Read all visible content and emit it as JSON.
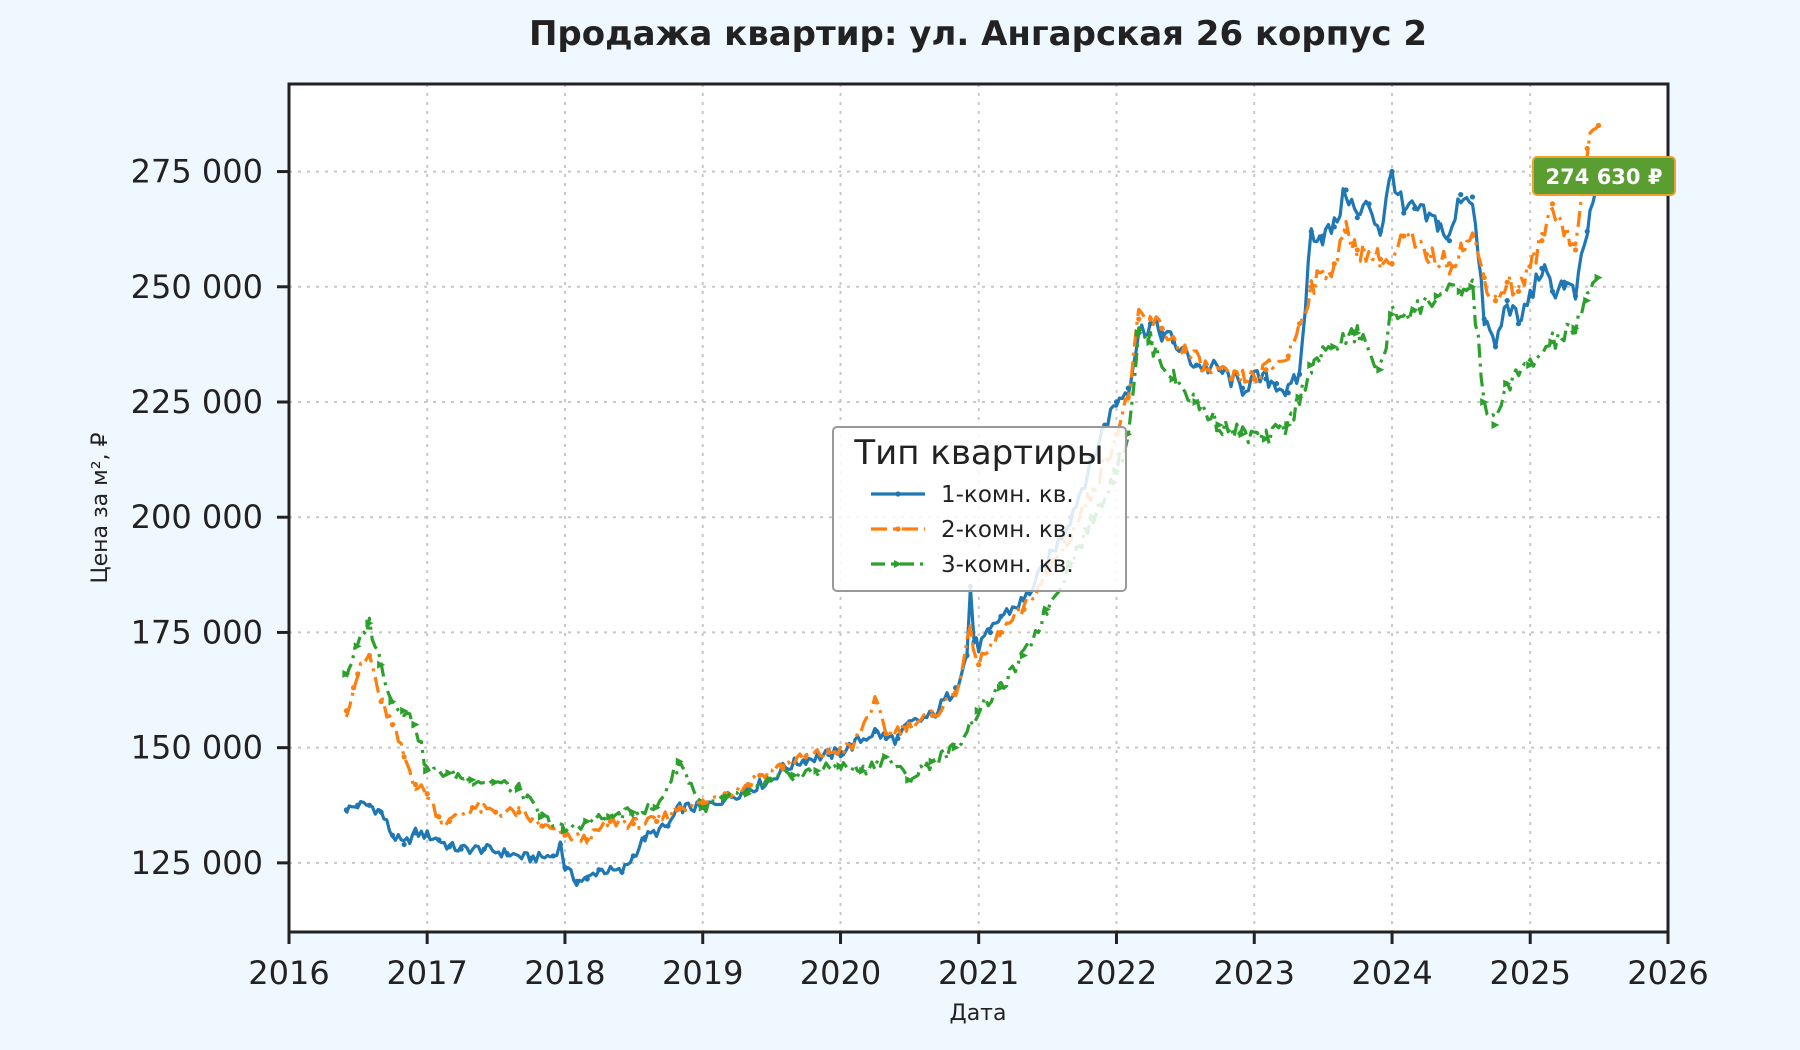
{
  "chart_data": {
    "type": "line",
    "title": "Продажа квартир: ул. Ангарская 26 корпус 2",
    "xlabel": "Дата",
    "ylabel": "Цена за м², ₽",
    "x_ticks": [
      "2016",
      "2017",
      "2018",
      "2019",
      "2020",
      "2021",
      "2022",
      "2023",
      "2024",
      "2025",
      "2026"
    ],
    "y_ticks": [
      "125 000",
      "150 000",
      "175 000",
      "200 000",
      "225 000",
      "250 000",
      "275 000"
    ],
    "y_tick_values": [
      125000,
      150000,
      175000,
      200000,
      225000,
      250000,
      275000
    ],
    "xlim": [
      "2016-01-01",
      "2026-01-01"
    ],
    "ylim": [
      110000,
      294000
    ],
    "grid": true,
    "legend_title": "Тип квартиры",
    "legend_position": "center",
    "annotation": {
      "text": "274 630 ₽",
      "color": "#5a9e32"
    },
    "series": [
      {
        "name": "1-комн. кв.",
        "color": "#1f77b4",
        "style": "solid",
        "points": [
          [
            "2016-06-01",
            136500
          ],
          [
            "2016-07-01",
            137500
          ],
          [
            "2016-08-01",
            137500
          ],
          [
            "2016-09-01",
            136000
          ],
          [
            "2016-10-01",
            131000
          ],
          [
            "2016-11-01",
            129000
          ],
          [
            "2016-12-01",
            131500
          ],
          [
            "2017-01-01",
            131000
          ],
          [
            "2017-02-01",
            130000
          ],
          [
            "2017-03-01",
            128500
          ],
          [
            "2017-04-01",
            128000
          ],
          [
            "2017-06-01",
            128000
          ],
          [
            "2017-08-01",
            127000
          ],
          [
            "2017-10-01",
            126000
          ],
          [
            "2017-12-01",
            126500
          ],
          [
            "2017-12-20",
            129000
          ],
          [
            "2018-01-01",
            124000
          ],
          [
            "2018-02-01",
            121000
          ],
          [
            "2018-03-01",
            121500
          ],
          [
            "2018-04-01",
            123500
          ],
          [
            "2018-06-01",
            123000
          ],
          [
            "2018-07-01",
            126500
          ],
          [
            "2018-08-01",
            130500
          ],
          [
            "2018-10-01",
            133000
          ],
          [
            "2018-11-01",
            137000
          ],
          [
            "2019-01-01",
            137000
          ],
          [
            "2019-03-01",
            139000
          ],
          [
            "2019-05-01",
            141000
          ],
          [
            "2019-07-01",
            143000
          ],
          [
            "2019-08-01",
            145500
          ],
          [
            "2019-10-01",
            147500
          ],
          [
            "2019-12-01",
            148500
          ],
          [
            "2020-01-01",
            149000
          ],
          [
            "2020-02-01",
            150500
          ],
          [
            "2020-04-01",
            153500
          ],
          [
            "2020-05-01",
            152000
          ],
          [
            "2020-06-01",
            152000
          ],
          [
            "2020-07-01",
            155000
          ],
          [
            "2020-09-01",
            157000
          ],
          [
            "2020-11-01",
            163000
          ],
          [
            "2020-12-01",
            170000
          ],
          [
            "2020-12-10",
            185000
          ],
          [
            "2020-12-20",
            173000
          ],
          [
            "2021-01-01",
            172000
          ],
          [
            "2021-02-01",
            175000
          ],
          [
            "2021-03-01",
            178500
          ],
          [
            "2021-05-01",
            182000
          ],
          [
            "2021-07-01",
            190000
          ],
          [
            "2021-09-01",
            200000
          ],
          [
            "2021-11-01",
            213000
          ],
          [
            "2021-12-01",
            220000
          ],
          [
            "2022-01-01",
            225000
          ],
          [
            "2022-02-01",
            228000
          ],
          [
            "2022-03-01",
            240000
          ],
          [
            "2022-04-01",
            242000
          ],
          [
            "2022-05-01",
            240000
          ],
          [
            "2022-06-01",
            238000
          ],
          [
            "2022-08-01",
            233000
          ],
          [
            "2022-10-01",
            232000
          ],
          [
            "2022-12-01",
            228000
          ],
          [
            "2023-01-01",
            230000
          ],
          [
            "2023-02-01",
            230000
          ],
          [
            "2023-03-01",
            229000
          ],
          [
            "2023-04-01",
            227000
          ],
          [
            "2023-05-01",
            231000
          ],
          [
            "2023-06-01",
            262000
          ],
          [
            "2023-07-01",
            261000
          ],
          [
            "2023-08-01",
            263000
          ],
          [
            "2023-09-01",
            271000
          ],
          [
            "2023-10-01",
            265000
          ],
          [
            "2023-11-01",
            268000
          ],
          [
            "2023-12-01",
            262000
          ],
          [
            "2024-01-01",
            275000
          ],
          [
            "2024-02-01",
            266000
          ],
          [
            "2024-03-01",
            267000
          ],
          [
            "2024-04-01",
            265000
          ],
          [
            "2024-05-01",
            264000
          ],
          [
            "2024-06-01",
            260000
          ],
          [
            "2024-07-01",
            270000
          ],
          [
            "2024-08-01",
            269500
          ],
          [
            "2024-09-01",
            243000
          ],
          [
            "2024-10-01",
            237000
          ],
          [
            "2024-11-01",
            247000
          ],
          [
            "2024-12-01",
            242000
          ],
          [
            "2025-01-01",
            248000
          ],
          [
            "2025-02-01",
            254000
          ],
          [
            "2025-03-01",
            249000
          ],
          [
            "2025-04-01",
            251000
          ],
          [
            "2025-05-01",
            248000
          ],
          [
            "2025-06-01",
            262000
          ],
          [
            "2025-07-01",
            274630
          ]
        ]
      },
      {
        "name": "2-комн. кв.",
        "color": "#ff7f0e",
        "style": "dashdot",
        "points": [
          [
            "2016-06-01",
            158000
          ],
          [
            "2016-06-20",
            163000
          ],
          [
            "2016-07-01",
            166000
          ],
          [
            "2016-08-01",
            170000
          ],
          [
            "2016-09-01",
            160000
          ],
          [
            "2016-10-01",
            155000
          ],
          [
            "2016-11-01",
            148000
          ],
          [
            "2016-12-01",
            142000
          ],
          [
            "2017-01-01",
            140000
          ],
          [
            "2017-02-01",
            135000
          ],
          [
            "2017-03-01",
            134000
          ],
          [
            "2017-05-01",
            137000
          ],
          [
            "2017-07-01",
            136000
          ],
          [
            "2017-09-01",
            136000
          ],
          [
            "2017-11-01",
            133000
          ],
          [
            "2018-01-01",
            131000
          ],
          [
            "2018-03-01",
            130000
          ],
          [
            "2018-05-01",
            134000
          ],
          [
            "2018-07-01",
            133500
          ],
          [
            "2018-09-01",
            134000
          ],
          [
            "2018-11-01",
            137000
          ],
          [
            "2019-01-01",
            138000
          ],
          [
            "2019-03-01",
            140000
          ],
          [
            "2019-05-01",
            142000
          ],
          [
            "2019-06-01",
            144000
          ],
          [
            "2019-08-01",
            146000
          ],
          [
            "2019-10-01",
            148000
          ],
          [
            "2019-12-01",
            149000
          ],
          [
            "2020-02-01",
            150000
          ],
          [
            "2020-04-01",
            160000
          ],
          [
            "2020-05-01",
            153000
          ],
          [
            "2020-07-01",
            155000
          ],
          [
            "2020-09-01",
            157000
          ],
          [
            "2020-11-01",
            162000
          ],
          [
            "2020-12-10",
            175000
          ],
          [
            "2021-01-01",
            168000
          ],
          [
            "2021-03-01",
            175000
          ],
          [
            "2021-05-01",
            180000
          ],
          [
            "2021-07-01",
            188000
          ],
          [
            "2021-09-01",
            196000
          ],
          [
            "2021-11-01",
            206000
          ],
          [
            "2022-01-01",
            218000
          ],
          [
            "2022-02-01",
            226000
          ],
          [
            "2022-03-01",
            243000
          ],
          [
            "2022-04-01",
            243000
          ],
          [
            "2022-05-01",
            241000
          ],
          [
            "2022-07-01",
            236000
          ],
          [
            "2022-09-01",
            232000
          ],
          [
            "2022-11-01",
            230000
          ],
          [
            "2023-01-01",
            230000
          ],
          [
            "2023-02-01",
            232000
          ],
          [
            "2023-04-01",
            235000
          ],
          [
            "2023-05-01",
            242000
          ],
          [
            "2023-06-01",
            250000
          ],
          [
            "2023-08-01",
            255000
          ],
          [
            "2023-09-01",
            262000
          ],
          [
            "2023-10-01",
            258000
          ],
          [
            "2023-12-01",
            256000
          ],
          [
            "2024-01-01",
            255000
          ],
          [
            "2024-02-01",
            261000
          ],
          [
            "2024-04-01",
            257000
          ],
          [
            "2024-06-01",
            255000
          ],
          [
            "2024-08-01",
            261000
          ],
          [
            "2024-09-01",
            252000
          ],
          [
            "2024-10-01",
            247000
          ],
          [
            "2024-11-01",
            251000
          ],
          [
            "2024-12-01",
            249000
          ],
          [
            "2025-02-01",
            260000
          ],
          [
            "2025-03-01",
            268000
          ],
          [
            "2025-05-01",
            258000
          ],
          [
            "2025-06-01",
            280000
          ],
          [
            "2025-07-01",
            285000
          ]
        ]
      },
      {
        "name": "3-комн. кв.",
        "color": "#2ca02c",
        "style": "dashdotmarkers",
        "points": [
          [
            "2016-06-01",
            166000
          ],
          [
            "2016-07-01",
            172000
          ],
          [
            "2016-08-01",
            177000
          ],
          [
            "2016-09-01",
            168000
          ],
          [
            "2016-10-01",
            160000
          ],
          [
            "2016-11-01",
            158000
          ],
          [
            "2016-12-01",
            155000
          ],
          [
            "2017-01-01",
            145000
          ],
          [
            "2017-03-01",
            144500
          ],
          [
            "2017-05-01",
            143000
          ],
          [
            "2017-07-01",
            142500
          ],
          [
            "2017-09-01",
            141000
          ],
          [
            "2017-11-01",
            135000
          ],
          [
            "2018-01-01",
            132000
          ],
          [
            "2018-03-01",
            134000
          ],
          [
            "2018-05-01",
            135000
          ],
          [
            "2018-07-01",
            136000
          ],
          [
            "2018-09-01",
            137000
          ],
          [
            "2018-11-01",
            147000
          ],
          [
            "2019-01-01",
            137000
          ],
          [
            "2019-03-01",
            139000
          ],
          [
            "2019-05-01",
            140000
          ],
          [
            "2019-07-01",
            143000
          ],
          [
            "2019-09-01",
            144000
          ],
          [
            "2019-11-01",
            145000
          ],
          [
            "2020-01-01",
            146000
          ],
          [
            "2020-03-01",
            145000
          ],
          [
            "2020-05-01",
            148000
          ],
          [
            "2020-07-01",
            143000
          ],
          [
            "2020-09-01",
            147000
          ],
          [
            "2020-11-01",
            150000
          ],
          [
            "2021-01-01",
            158000
          ],
          [
            "2021-03-01",
            163000
          ],
          [
            "2021-05-01",
            170000
          ],
          [
            "2021-07-01",
            180000
          ],
          [
            "2021-09-01",
            190000
          ],
          [
            "2021-11-01",
            200000
          ],
          [
            "2022-01-01",
            210000
          ],
          [
            "2022-02-01",
            218000
          ],
          [
            "2022-03-01",
            240000
          ],
          [
            "2022-04-01",
            238000
          ],
          [
            "2022-06-01",
            230000
          ],
          [
            "2022-08-01",
            225000
          ],
          [
            "2022-10-01",
            220000
          ],
          [
            "2022-12-01",
            218000
          ],
          [
            "2023-02-01",
            217000
          ],
          [
            "2023-04-01",
            220000
          ],
          [
            "2023-05-01",
            226000
          ],
          [
            "2023-06-01",
            233000
          ],
          [
            "2023-08-01",
            237000
          ],
          [
            "2023-10-01",
            240000
          ],
          [
            "2023-12-01",
            232000
          ],
          [
            "2024-01-01",
            244000
          ],
          [
            "2024-03-01",
            245000
          ],
          [
            "2024-05-01",
            248000
          ],
          [
            "2024-07-01",
            249000
          ],
          [
            "2024-08-01",
            250000
          ],
          [
            "2024-09-01",
            225000
          ],
          [
            "2024-10-01",
            220000
          ],
          [
            "2024-11-01",
            229000
          ],
          [
            "2025-01-01",
            233000
          ],
          [
            "2025-03-01",
            238000
          ],
          [
            "2025-05-01",
            241000
          ],
          [
            "2025-06-01",
            247000
          ],
          [
            "2025-07-01",
            252000
          ]
        ]
      }
    ]
  }
}
